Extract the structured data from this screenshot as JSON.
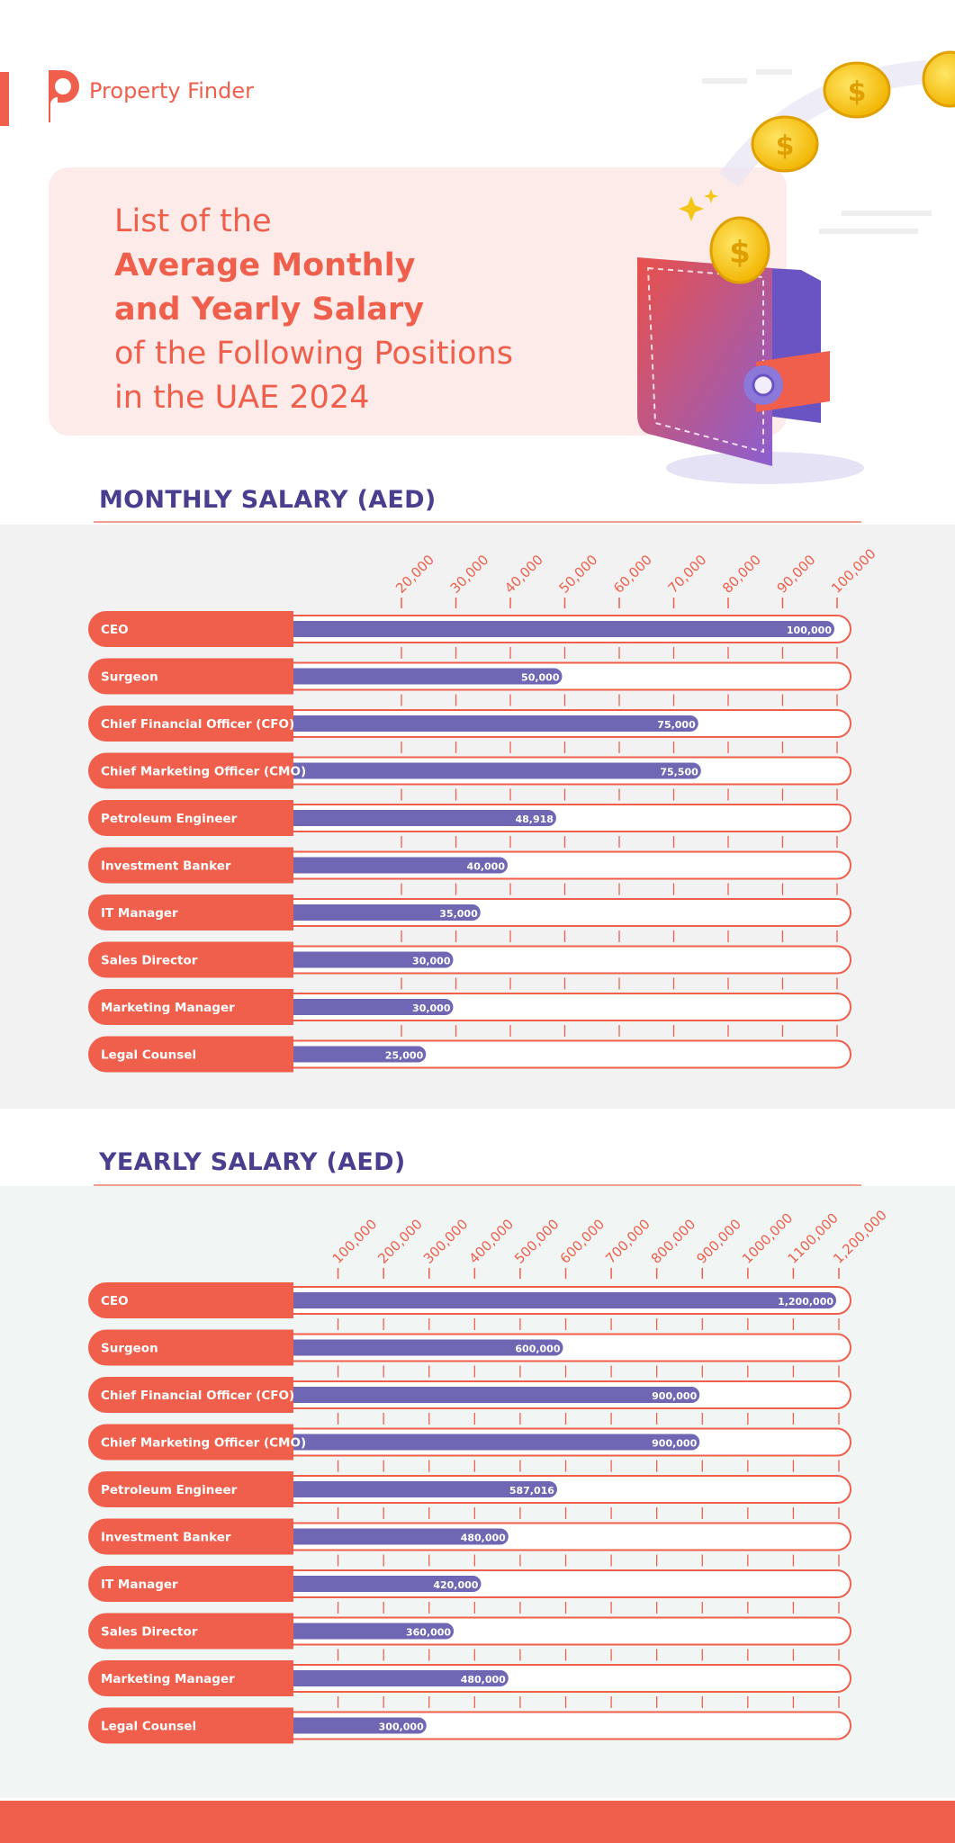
{
  "brand": {
    "name": "Property Finder",
    "color": "#ef5f4b"
  },
  "hero": {
    "line1": "List of the",
    "line2": "Average Monthly",
    "line3": "and Yearly Salary",
    "line4": "of the Following Positions",
    "line5": "in the UAE 2024"
  },
  "colors": {
    "accent": "#ef5f4b",
    "bar": "#6f67b4",
    "title": "#4a3f8f"
  },
  "chart_data": [
    {
      "type": "bar",
      "orientation": "horizontal",
      "title": "MONTHLY SALARY (AED)",
      "categories": [
        "CEO",
        "Surgeon",
        "Chief Financial Officer (CFO)",
        "Chief Marketing Officer (CMO)",
        "Petroleum Engineer",
        "Investment Banker",
        "IT Manager",
        "Sales Director",
        "Marketing Manager",
        "Legal Counsel"
      ],
      "values": [
        100000,
        50000,
        75000,
        75500,
        48918,
        40000,
        35000,
        30000,
        30000,
        25000
      ],
      "value_labels": [
        "100,000",
        "50,000",
        "75,000",
        "75,500",
        "48,918",
        "40,000",
        "35,000",
        "30,000",
        "30,000",
        "25,000"
      ],
      "ticks": [
        20000,
        30000,
        40000,
        50000,
        60000,
        70000,
        80000,
        90000,
        100000
      ],
      "tick_labels": [
        "20,000",
        "30,000",
        "40,000",
        "50,000",
        "60,000",
        "70,000",
        "80,000",
        "90,000",
        "100,000"
      ],
      "xlim": [
        0,
        100000
      ]
    },
    {
      "type": "bar",
      "orientation": "horizontal",
      "title": "YEARLY SALARY (AED)",
      "categories": [
        "CEO",
        "Surgeon",
        "Chief Financial Officer (CFO)",
        "Chief Marketing Officer (CMO)",
        "Petroleum Engineer",
        "Investment Banker",
        "IT Manager",
        "Sales Director",
        "Marketing Manager",
        "Legal Counsel"
      ],
      "values": [
        1200000,
        600000,
        900000,
        900000,
        587016,
        480000,
        420000,
        360000,
        480000,
        300000
      ],
      "value_labels": [
        "1,200,000",
        "600,000",
        "900,000",
        "900,000",
        "587,016",
        "480,000",
        "420,000",
        "360,000",
        "480,000",
        "300,000"
      ],
      "ticks": [
        100000,
        200000,
        300000,
        400000,
        500000,
        600000,
        700000,
        800000,
        900000,
        1000000,
        1100000,
        1200000
      ],
      "tick_labels": [
        "100,000",
        "200,000",
        "300,000",
        "400,000",
        "500,000",
        "600,000",
        "700,000",
        "800,000",
        "900,000",
        "1000,000",
        "1100,000",
        "1,200,000"
      ],
      "xlim": [
        0,
        1200000
      ]
    }
  ]
}
